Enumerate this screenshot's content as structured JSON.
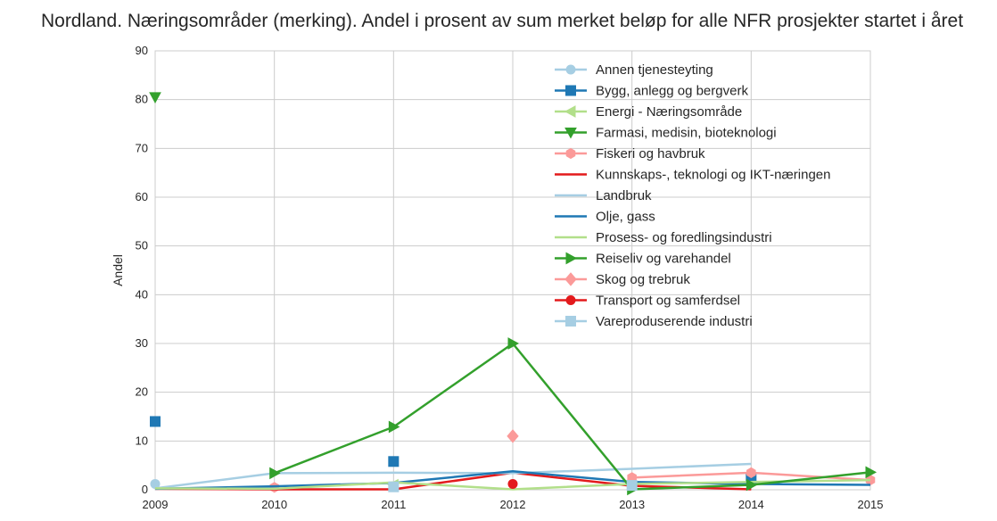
{
  "chart_data": {
    "type": "line",
    "title": "Nordland. Næringsområder (merking). Andel i prosent av sum merket beløp for alle NFR prosjekter startet i året",
    "xlabel": "",
    "ylabel": "Andel",
    "x": [
      2009,
      2010,
      2011,
      2012,
      2013,
      2014,
      2015
    ],
    "x_tick_labels": [
      "2009",
      "2010",
      "2011",
      "2012",
      "2013",
      "2014",
      "2015"
    ],
    "xlim": [
      2009,
      2015
    ],
    "ylim": [
      0,
      90
    ],
    "y_ticks": [
      0,
      10,
      20,
      30,
      40,
      50,
      60,
      70,
      80,
      90
    ],
    "grid": true,
    "legend_position": "top-right",
    "series": [
      {
        "name": "Annen tjenesteyting",
        "color": "#a6cee3",
        "marker": "circle",
        "values": [
          1.2,
          null,
          null,
          null,
          null,
          null,
          null
        ]
      },
      {
        "name": "Bygg, anlegg og bergverk",
        "color": "#1f78b4",
        "marker": "square",
        "values": [
          14,
          null,
          5.8,
          null,
          null,
          2.2,
          null
        ]
      },
      {
        "name": "Energi - Næringsområde",
        "color": "#b2df8a",
        "marker": "triangle-left",
        "values": [
          null,
          null,
          1.0,
          null,
          null,
          null,
          null
        ]
      },
      {
        "name": "Farmasi, medisin, bioteknologi",
        "color": "#33a02c",
        "marker": "triangle-down",
        "values": [
          80.5,
          null,
          null,
          null,
          null,
          null,
          null
        ]
      },
      {
        "name": "Fiskeri og havbruk",
        "color": "#fb9a99",
        "marker": "hexagon",
        "values": [
          null,
          0.5,
          null,
          null,
          2.5,
          3.5,
          2.0
        ]
      },
      {
        "name": "Kunnskaps-, teknologi og IKT-næringen",
        "color": "#e31a1c",
        "marker": "none",
        "values": [
          0.2,
          0.1,
          0.1,
          3.5,
          0.8,
          0.1,
          null
        ]
      },
      {
        "name": "Landbruk",
        "color": "#a6cee3",
        "marker": "none",
        "values": [
          0.3,
          3.4,
          3.5,
          3.4,
          4.3,
          5.3,
          null
        ]
      },
      {
        "name": "Olje, gass",
        "color": "#1f78b4",
        "marker": "none",
        "values": [
          0.2,
          0.7,
          1.4,
          3.8,
          1.6,
          1.2,
          1.0
        ]
      },
      {
        "name": "Prosess- og foredlingsindustri",
        "color": "#b2df8a",
        "marker": "none",
        "values": [
          0.3,
          0.2,
          1.5,
          0.1,
          1.2,
          1.6,
          2.0
        ]
      },
      {
        "name": "Reiseliv og varehandel",
        "color": "#33a02c",
        "marker": "triangle-right",
        "values": [
          null,
          3.4,
          12.9,
          30,
          0.1,
          1.0,
          3.6
        ]
      },
      {
        "name": "Skog og trebruk",
        "color": "#fb9a99",
        "marker": "diamond",
        "values": [
          null,
          null,
          null,
          11,
          null,
          null,
          null
        ]
      },
      {
        "name": "Transport og samferdsel",
        "color": "#e31a1c",
        "marker": "circle",
        "values": [
          null,
          null,
          null,
          1.2,
          null,
          null,
          null
        ]
      },
      {
        "name": "Vareproduserende industri",
        "color": "#a6cee3",
        "marker": "square",
        "values": [
          null,
          null,
          0.6,
          null,
          0.9,
          null,
          null
        ]
      }
    ]
  }
}
